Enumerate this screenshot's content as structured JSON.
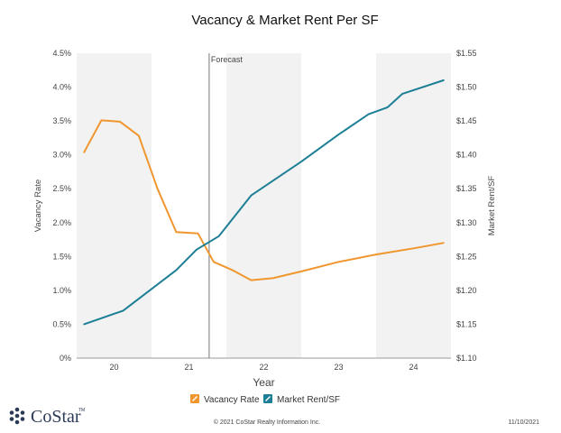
{
  "chart_data": {
    "type": "line",
    "title": "Vacancy & Market Rent Per SF",
    "xlabel": "Year",
    "ylabel_left": "Vacancy Rate",
    "ylabel_right": "Market Rent/SF",
    "x_ticks": [
      "20",
      "21",
      "22",
      "23",
      "24"
    ],
    "y_left": {
      "ylim": [
        0,
        4.5
      ],
      "ticks": [
        0,
        0.5,
        1.0,
        1.5,
        2.0,
        2.5,
        3.0,
        3.5,
        4.0,
        4.5
      ],
      "tick_labels": [
        "0%",
        "0.5%",
        "1.0%",
        "1.5%",
        "2.0%",
        "2.5%",
        "3.0%",
        "3.5%",
        "4.0%",
        "4.5%"
      ]
    },
    "y_right": {
      "ylim": [
        1.1,
        1.55
      ],
      "ticks": [
        1.1,
        1.15,
        1.2,
        1.25,
        1.3,
        1.35,
        1.4,
        1.45,
        1.5,
        1.55
      ],
      "tick_labels": [
        "$1.10",
        "$1.15",
        "$1.20",
        "$1.25",
        "$1.30",
        "$1.35",
        "$1.40",
        "$1.45",
        "$1.50",
        "$1.55"
      ]
    },
    "x_range": [
      2019.5,
      2024.5
    ],
    "forecast_x": 2021.27,
    "forecast_label": "Forecast",
    "shaded_years": [
      2020,
      2022,
      2024
    ],
    "grid": false,
    "legend_position": "bottom",
    "series": [
      {
        "name": "Vacancy Rate",
        "axis": "left",
        "color": "#f0962e",
        "x": [
          2019.6,
          2019.83,
          2020.08,
          2020.33,
          2020.58,
          2020.83,
          2021.12,
          2021.33,
          2021.58,
          2021.83,
          2022.12,
          2022.5,
          2023.0,
          2023.5,
          2024.0,
          2024.4
        ],
        "values": [
          3.04,
          3.51,
          3.49,
          3.28,
          2.5,
          1.86,
          1.84,
          1.42,
          1.3,
          1.15,
          1.18,
          1.28,
          1.42,
          1.53,
          1.62,
          1.7
        ]
      },
      {
        "name": "Market Rent/SF",
        "axis": "right",
        "color": "#1d7f95",
        "x": [
          2019.6,
          2020.12,
          2020.83,
          2021.1,
          2021.4,
          2021.83,
          2022.5,
          2023.0,
          2023.4,
          2023.65,
          2023.85,
          2024.4
        ],
        "values": [
          1.15,
          1.17,
          1.23,
          1.26,
          1.28,
          1.34,
          1.39,
          1.43,
          1.46,
          1.47,
          1.49,
          1.51
        ]
      }
    ]
  },
  "footer": {
    "logo_text": "CoStar",
    "logo_tm": "TM",
    "copyright": "© 2021 CoStar Realty Information Inc.",
    "date": "11/10/2021"
  },
  "colors": {
    "vacancy": "#f0962e",
    "rent": "#1d7f95",
    "shade": "#f2f2f2",
    "logo": "#2b3a55"
  }
}
